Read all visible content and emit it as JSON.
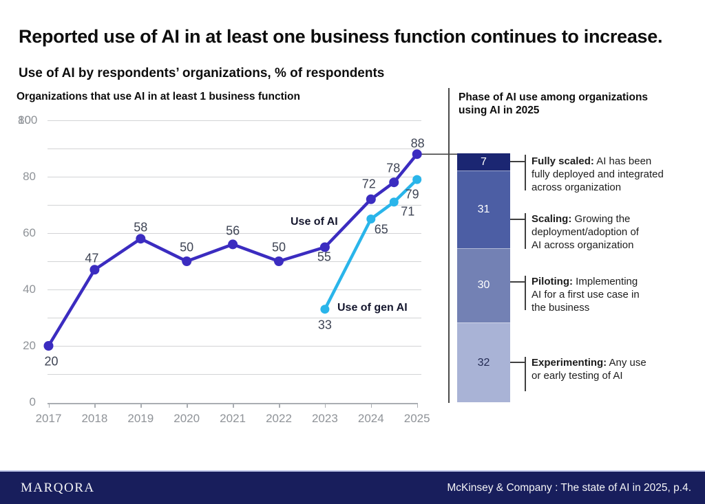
{
  "header": {
    "title": "Reported use of AI in at least one business function continues to increase.",
    "subtitle": "Use of AI by respondents’ organizations, % of respondents"
  },
  "chart_data": [
    {
      "type": "line",
      "title": "Organizations that use AI in at least 1 business function",
      "x_tick_labels": [
        "2017",
        "2018",
        "2019",
        "2020",
        "2021",
        "2022",
        "2023",
        "2024",
        "2025"
      ],
      "x_tick_years": [
        2017,
        2018,
        2019,
        2020,
        2021,
        2022,
        2023,
        2024,
        2025
      ],
      "series": [
        {
          "name": "Use of AI",
          "color": "#3B2CC0",
          "x": [
            2017,
            2018,
            2019,
            2020,
            2021,
            2022,
            2023,
            2024,
            2024.5,
            2025
          ],
          "values": [
            20,
            47,
            58,
            50,
            56,
            50,
            55,
            72,
            78,
            88
          ]
        },
        {
          "name": "Use of gen AI",
          "color": "#2AB5EA",
          "x": [
            2023,
            2024,
            2024.5,
            2025
          ],
          "values": [
            33,
            65,
            71,
            79
          ]
        }
      ],
      "ylim": [
        0,
        100
      ],
      "y_ticks_shown": [
        "0",
        "20",
        "40",
        "60",
        "80"
      ],
      "y_top_overlap_labels": [
        "80",
        "100"
      ],
      "grid": "horizontal gridlines every 10 units",
      "legend_position": "inline bold labels next to lines",
      "connector_note": "leader line links 2025 value 88 to top of phase bar"
    },
    {
      "type": "bar",
      "stacked": true,
      "title": "Phase of AI use among organizations using AI in 2025",
      "total": 100,
      "segments": [
        {
          "label": "Fully scaled",
          "value": 7,
          "color": "#1B2672",
          "label_color": "#FFFFFF"
        },
        {
          "label": "Scaling",
          "value": 31,
          "color": "#4C5EA4",
          "label_color": "#FFFFFF"
        },
        {
          "label": "Piloting",
          "value": 30,
          "color": "#7381B4",
          "label_color": "#FFFFFF"
        },
        {
          "label": "Experimenting",
          "value": 32,
          "color": "#A9B3D6",
          "label_color": "#222A52"
        }
      ]
    }
  ],
  "right_panel": {
    "heading": "Phase of AI use among organizations\nusing AI in 2025",
    "phases": [
      {
        "term": "Fully scaled:",
        "rest": " AI has been\nfully deployed and integrated\nacross organization"
      },
      {
        "term": "Scaling:",
        "rest": " Growing the\ndeployment/adoption of\nAI across organization"
      },
      {
        "term": "Piloting:",
        "rest": " Implementing\nAI for a first use case in\nthe business"
      },
      {
        "term": "Experimenting:",
        "rest": " Any use\nor early testing of AI"
      }
    ]
  },
  "footer": {
    "brand": "MARQORA",
    "source": "McKinsey & Company : The state of AI in 2025, p.4."
  }
}
